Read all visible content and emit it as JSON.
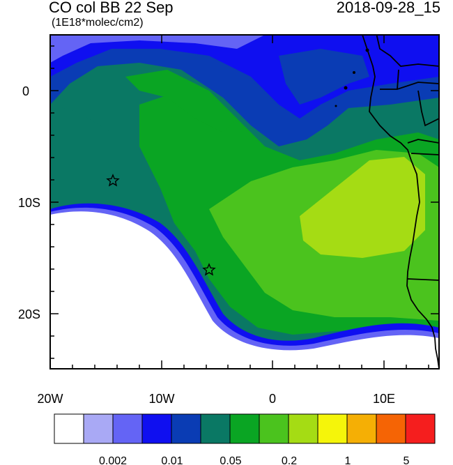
{
  "title": "CO col BB 22 Sep",
  "units": "(1E18*molec/cm2)",
  "timestamp": "2018-09-28_15",
  "axes": {
    "x_ticks": [
      "20W",
      "10W",
      "0",
      "10E"
    ],
    "y_ticks": [
      "0",
      "10S",
      "20S"
    ]
  },
  "markers": [
    {
      "name": "star",
      "lon": -14.3,
      "lat": -8.0
    },
    {
      "name": "star",
      "lon": -5.7,
      "lat": -15.9
    }
  ],
  "colorbar": {
    "colors": [
      "#ffffff",
      "#a9a9f5",
      "#6464f5",
      "#0f0ff0",
      "#0a3cb4",
      "#0a7864",
      "#0aa523",
      "#4bc31e",
      "#a5dc14",
      "#f5f50a",
      "#f5af05",
      "#f56405",
      "#f51e1e"
    ],
    "labels": [
      "0.002",
      "0.01",
      "0.05",
      "0.2",
      "1",
      "5"
    ]
  },
  "chart_data": {
    "type": "heatmap",
    "title": "CO col BB 22 Sep",
    "subtitle": "(1E18*molec/cm2)",
    "xlim": [
      -20,
      15
    ],
    "ylim": [
      -25,
      5
    ],
    "xticks": [
      "20W",
      "10W",
      "0",
      "10E"
    ],
    "yticks": [
      "0",
      "10S",
      "20S"
    ]
  }
}
